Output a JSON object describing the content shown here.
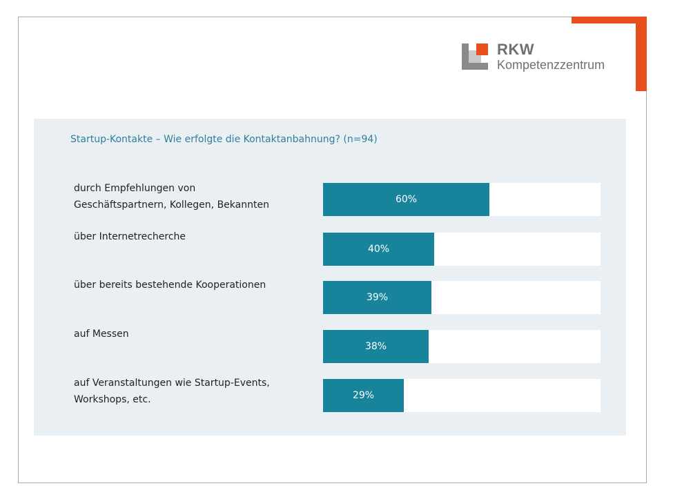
{
  "colors": {
    "accent": "#e84e1b",
    "bar": "#18849c",
    "panel_background": "#e9eff3",
    "title_text": "#2f7f9a",
    "logo_gray": "#8a8a8a"
  },
  "logo": {
    "name": "RKW",
    "subtitle": "Kompetenzzentrum"
  },
  "chart_data": {
    "type": "bar",
    "orientation": "horizontal",
    "title": "Startup-Kontakte – Wie erfolgte die Kontaktanbahnung? (n=94)",
    "unit": "%",
    "xlim": [
      0,
      100
    ],
    "grid": false,
    "categories": [
      "durch Empfehlungen von Geschäftspartnern, Kollegen, Bekannten",
      "über Internetrecherche",
      "über bereits bestehende Kooperationen",
      "auf Messen",
      "auf Veranstaltungen wie Startup-Events, Workshops, etc."
    ],
    "label_lines": [
      [
        "durch Empfehlungen von",
        "Geschäftspartnern, Kollegen, Bekannten"
      ],
      [
        "über Internetrecherche"
      ],
      [
        "über bereits bestehende Kooperationen"
      ],
      [
        "auf Messen"
      ],
      [
        "auf Veranstaltungen wie Startup-Events,",
        "Workshops, etc."
      ]
    ],
    "values": [
      60,
      40,
      39,
      38,
      29
    ],
    "value_labels": [
      "60%",
      "40%",
      "39%",
      "38%",
      "29%"
    ]
  }
}
